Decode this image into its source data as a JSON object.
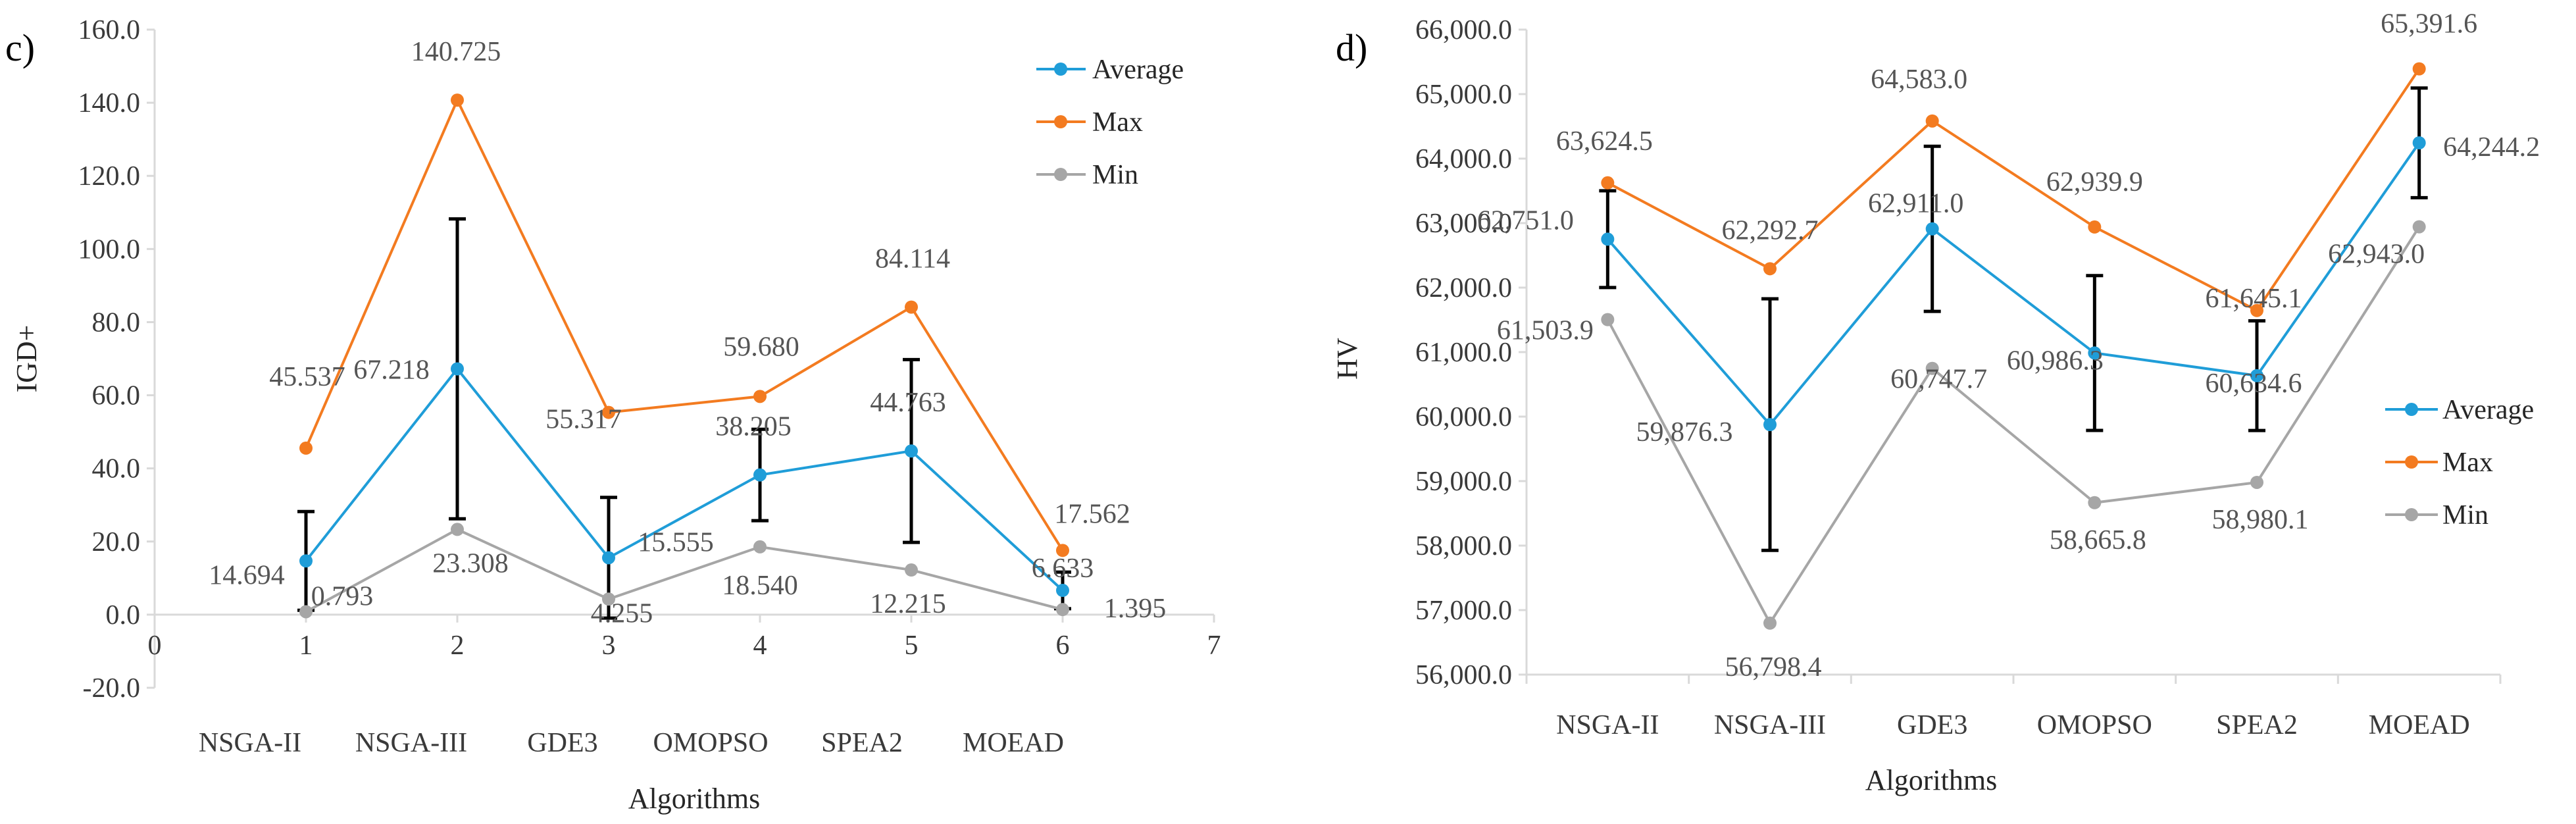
{
  "colors": {
    "average": "#1f9dd8",
    "max": "#f37b20",
    "min": "#a6a6a6"
  },
  "chart_data": [
    {
      "panel": "c)",
      "type": "line",
      "ylabel": "IGD+",
      "xlabel": "Algorithms",
      "ylim": [
        -20,
        160
      ],
      "yticks": [
        "160.0",
        "140.0",
        "120.0",
        "100.0",
        "80.0",
        "60.0",
        "40.0",
        "20.0",
        "0.0",
        "-20.0"
      ],
      "xlim": [
        0,
        7
      ],
      "xticks": [
        "0",
        "1",
        "2",
        "3",
        "4",
        "5",
        "6",
        "7"
      ],
      "categories": [
        "NSGA-II",
        "NSGA-III",
        "GDE3",
        "OMOPSO",
        "SPEA2",
        "MOEAD"
      ],
      "legend": "top-right",
      "series": [
        {
          "name": "Average",
          "values": [
            14.694,
            67.218,
            15.555,
            38.205,
            44.763,
            6.633
          ],
          "labels": [
            "14.694",
            "67.218",
            "15.555",
            "38.205",
            "44.763",
            "6.633"
          ],
          "error": [
            13.5,
            41.0,
            16.5,
            12.5,
            25.0,
            5.0
          ]
        },
        {
          "name": "Max",
          "values": [
            45.537,
            140.725,
            55.317,
            59.68,
            84.114,
            17.562
          ],
          "labels": [
            "45.537",
            "140.725",
            "55.317",
            "59.680",
            "84.114",
            "17.562"
          ]
        },
        {
          "name": "Min",
          "values": [
            0.793,
            23.308,
            4.255,
            18.54,
            12.215,
            1.395
          ],
          "labels": [
            "0.793",
            "23.308",
            "4.255",
            "18.540",
            "12.215",
            "1.395"
          ]
        }
      ]
    },
    {
      "panel": "d)",
      "type": "line",
      "ylabel": "HV",
      "xlabel": "Algorithms",
      "ylim": [
        56000,
        66000
      ],
      "yticks": [
        "66,000.0",
        "65,000.0",
        "64,000.0",
        "63,000.0",
        "62,000.0",
        "61,000.0",
        "60,000.0",
        "59,000.0",
        "58,000.0",
        "57,000.0",
        "56,000.0"
      ],
      "categories": [
        "NSGA-II",
        "NSGA-III",
        "GDE3",
        "OMOPSO",
        "SPEA2",
        "MOEAD"
      ],
      "legend": "right",
      "series": [
        {
          "name": "Average",
          "values": [
            62751.0,
            59876.3,
            62911.0,
            60986.3,
            60634.6,
            64244.2
          ],
          "labels": [
            "62,751.0",
            "59,876.3",
            "62,911.0",
            "60,986.3",
            "60,634.6",
            "64,244.2"
          ],
          "error": [
            750,
            1950,
            1280,
            1200,
            850,
            850
          ]
        },
        {
          "name": "Max",
          "values": [
            63624.5,
            62292.7,
            64583.0,
            62939.9,
            61645.1,
            65391.6
          ],
          "labels": [
            "63,624.5",
            "62,292.7",
            "64,583.0",
            "62,939.9",
            "61,645.1",
            "65,391.6"
          ]
        },
        {
          "name": "Min",
          "values": [
            61503.9,
            56798.4,
            60747.7,
            58665.8,
            58980.1,
            62943.0
          ],
          "labels": [
            "61,503.9",
            "56,798.4",
            "60,747.7",
            "58,665.8",
            "58,980.1",
            "62,943.0"
          ]
        }
      ]
    }
  ]
}
